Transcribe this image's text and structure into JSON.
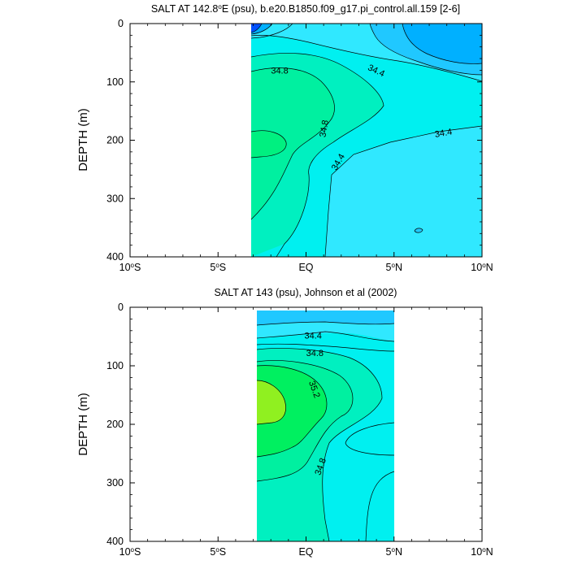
{
  "chart_data": [
    {
      "type": "contour",
      "title_prefix": "SALT AT 142.8",
      "title_deg": "o",
      "title_suffix": "E (psu), b.e20.B1850.f09_g17.pi_control.all.159 [2-6]",
      "ylabel": "DEPTH (m)",
      "xlim": [
        -10,
        10
      ],
      "ylim": [
        400,
        0
      ],
      "x_ticks": [
        {
          "value": -10,
          "num": "10",
          "deg": "o",
          "hem": "S"
        },
        {
          "value": -5,
          "num": "5",
          "deg": "o",
          "hem": "S"
        },
        {
          "value": 0,
          "num": "EQ",
          "deg": "",
          "hem": ""
        },
        {
          "value": 5,
          "num": "5",
          "deg": "o",
          "hem": "N"
        },
        {
          "value": 10,
          "num": "10",
          "deg": "o",
          "hem": "N"
        }
      ],
      "y_ticks": [
        {
          "value": 0,
          "label": "0"
        },
        {
          "value": 100,
          "label": "100"
        },
        {
          "value": 200,
          "label": "200"
        },
        {
          "value": 300,
          "label": "300"
        },
        {
          "value": 400,
          "label": "400"
        }
      ],
      "data_x_range": [
        -3.2,
        10
      ],
      "data_y_range": [
        5,
        400
      ],
      "background_color": "#00f0f0",
      "contour_labels": [
        {
          "text": "34.8",
          "x": -1.5,
          "y": 80,
          "angle": 0
        },
        {
          "text": "34.4",
          "x": 4.0,
          "y": 80,
          "angle": 25
        },
        {
          "text": "34.8",
          "x": 1.0,
          "y": 180,
          "angle": -80
        },
        {
          "text": "34.4",
          "x": 7.8,
          "y": 187,
          "angle": -10
        },
        {
          "text": "34.4",
          "x": 1.8,
          "y": 237,
          "angle": -60
        }
      ]
    },
    {
      "type": "contour",
      "title_prefix": "SALT AT 143 (psu), Johnson et al (2002)",
      "title_deg": "",
      "title_suffix": "",
      "ylabel": "DEPTH (m)",
      "xlim": [
        -10,
        10
      ],
      "ylim": [
        400,
        0
      ],
      "x_ticks": [
        {
          "value": -10,
          "num": "10",
          "deg": "o",
          "hem": "S"
        },
        {
          "value": -5,
          "num": "5",
          "deg": "o",
          "hem": "S"
        },
        {
          "value": 0,
          "num": "EQ",
          "deg": "",
          "hem": ""
        },
        {
          "value": 5,
          "num": "5",
          "deg": "o",
          "hem": "N"
        },
        {
          "value": 10,
          "num": "10",
          "deg": "o",
          "hem": "N"
        }
      ],
      "y_ticks": [
        {
          "value": 0,
          "label": "0"
        },
        {
          "value": 100,
          "label": "100"
        },
        {
          "value": 200,
          "label": "200"
        },
        {
          "value": 300,
          "label": "300"
        },
        {
          "value": 400,
          "label": "400"
        }
      ],
      "data_x_range": [
        -2.8,
        5
      ],
      "data_y_range": [
        5,
        400
      ],
      "background_color": "#00f0f0",
      "contour_labels": [
        {
          "text": "34.4",
          "x": 0.4,
          "y": 48,
          "angle": 0
        },
        {
          "text": "34.8",
          "x": 0.5,
          "y": 78,
          "angle": 0
        },
        {
          "text": "35.2",
          "x": 0.5,
          "y": 140,
          "angle": 70
        },
        {
          "text": "34.8",
          "x": 0.8,
          "y": 272,
          "angle": -70
        }
      ]
    }
  ]
}
